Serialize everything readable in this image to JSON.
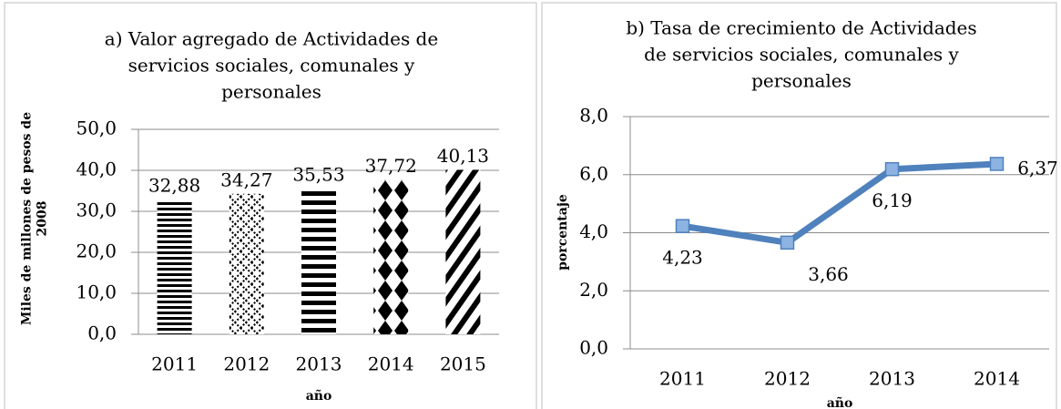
{
  "chart_data": [
    {
      "type": "bar",
      "title": [
        "a) Valor agregado de Actividades de",
        "servicios sociales, comunales y",
        "personales"
      ],
      "y_label": [
        "Miles de millones de pesos de",
        "2008"
      ],
      "x_label": "año",
      "categories": [
        "2011",
        "2012",
        "2013",
        "2014",
        "2015"
      ],
      "values": [
        32.88,
        34.27,
        35.53,
        37.72,
        40.13
      ],
      "value_labels": [
        "32,88",
        "34,27",
        "35,53",
        "37,72",
        "40,13"
      ],
      "ylim": [
        0,
        50
      ],
      "yticks": [
        {
          "value": 0,
          "label": "0,0"
        },
        {
          "value": 10,
          "label": "10,0"
        },
        {
          "value": 20,
          "label": "20,0"
        },
        {
          "value": 30,
          "label": "30,0"
        },
        {
          "value": 40,
          "label": "40,0"
        },
        {
          "value": 50,
          "label": "50,0"
        }
      ],
      "grid": true
    },
    {
      "type": "line",
      "title": [
        "b) Tasa de crecimiento de Actividades",
        "de servicios sociales, comunales y",
        "personales"
      ],
      "y_label": [
        "porcentaje"
      ],
      "x_label": "año",
      "categories": [
        "2011",
        "2012",
        "2013",
        "2014"
      ],
      "values": [
        4.23,
        3.66,
        6.19,
        6.37
      ],
      "value_labels": [
        "4,23",
        "3,66",
        "6,19",
        "6,37"
      ],
      "color": "#4f81bd",
      "marker_color": "#8db3e2",
      "ylim": [
        0,
        8
      ],
      "yticks": [
        {
          "value": 0,
          "label": "0,0"
        },
        {
          "value": 2,
          "label": "2,0"
        },
        {
          "value": 4,
          "label": "4,0"
        },
        {
          "value": 6,
          "label": "6,0"
        },
        {
          "value": 8,
          "label": "8,0"
        }
      ],
      "grid": true
    }
  ]
}
